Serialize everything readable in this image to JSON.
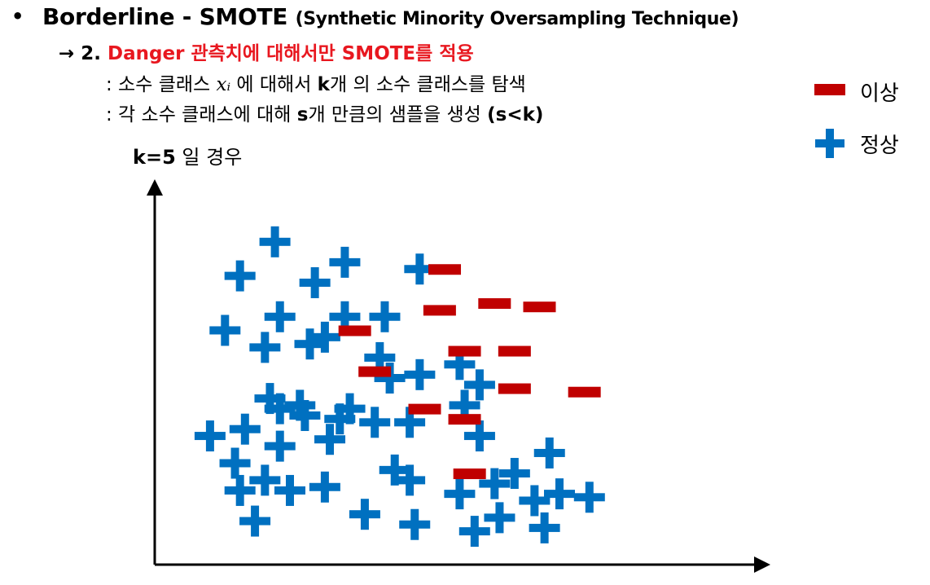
{
  "header": {
    "bullet": "•",
    "title_main": "Borderline - SMOTE",
    "title_sub": "(Synthetic Minority Oversampling Technique)",
    "step_arrow": "→ 2.",
    "step_red": "Danger 관측치에 대해서만 SMOTE를 적용",
    "desc1_pre": ": 소수 클래스",
    "desc1_var": "xᵢ",
    "desc1_mid": "에 대해서",
    "desc1_k": "k",
    "desc1_post": "개 의 소수 클래스를 탐색",
    "desc2_pre": ": 각 소수 클래스에 대해",
    "desc2_s": "s",
    "desc2_mid": "개 만큼의 샘플을 생성",
    "desc2_cond": "(s<k)"
  },
  "legend": {
    "minority_label": "이상",
    "majority_label": "정상",
    "minority_color": "#c00000",
    "majority_color": "#0070c0",
    "minority_icon": "minus-icon",
    "majority_icon": "plus-icon"
  },
  "k_label_bold": "k=5",
  "k_label_rest": "일 경우",
  "chart_data": {
    "type": "scatter",
    "xlim": [
      0,
      100
    ],
    "ylim": [
      0,
      100
    ],
    "axes_labels": false,
    "series": [
      {
        "name": "정상",
        "marker": "plus",
        "points": [
          [
            20,
            90
          ],
          [
            13,
            80
          ],
          [
            34,
            84
          ],
          [
            28,
            78
          ],
          [
            49,
            82
          ],
          [
            21,
            68
          ],
          [
            34,
            68
          ],
          [
            30,
            62
          ],
          [
            10,
            64
          ],
          [
            18,
            59
          ],
          [
            27,
            60
          ],
          [
            42,
            68
          ],
          [
            41,
            56
          ],
          [
            43,
            50
          ],
          [
            49,
            51
          ],
          [
            57,
            54
          ],
          [
            61,
            48
          ],
          [
            25,
            42
          ],
          [
            19,
            44
          ],
          [
            21,
            41
          ],
          [
            26,
            39
          ],
          [
            33,
            38
          ],
          [
            35,
            41
          ],
          [
            58,
            42
          ],
          [
            47,
            37
          ],
          [
            40,
            37
          ],
          [
            61,
            33
          ],
          [
            14,
            35
          ],
          [
            31,
            32
          ],
          [
            21,
            30
          ],
          [
            12,
            25
          ],
          [
            18,
            20
          ],
          [
            23,
            17
          ],
          [
            7,
            33
          ],
          [
            13,
            17
          ],
          [
            30,
            18
          ],
          [
            47,
            20
          ],
          [
            57,
            16
          ],
          [
            64,
            19
          ],
          [
            75,
            28
          ],
          [
            68,
            22
          ],
          [
            72,
            14
          ],
          [
            65,
            9
          ],
          [
            60,
            5
          ],
          [
            48,
            7
          ],
          [
            38,
            10
          ],
          [
            16,
            8
          ],
          [
            44,
            23
          ],
          [
            77,
            16
          ],
          [
            83,
            15
          ],
          [
            74,
            6
          ]
        ]
      },
      {
        "name": "이상",
        "marker": "minus",
        "points": [
          [
            54,
            82
          ],
          [
            53,
            70
          ],
          [
            64,
            72
          ],
          [
            73,
            71
          ],
          [
            36,
            64
          ],
          [
            68,
            58
          ],
          [
            58,
            58
          ],
          [
            40,
            52
          ],
          [
            68,
            47
          ],
          [
            82,
            46
          ],
          [
            50,
            41
          ],
          [
            58,
            38
          ],
          [
            59,
            22
          ]
        ]
      }
    ]
  }
}
